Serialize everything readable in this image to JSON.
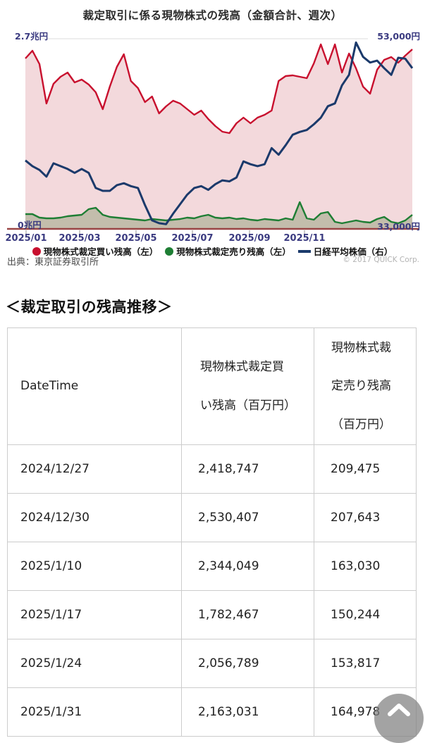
{
  "chart": {
    "title": "裁定取引に係る現物株式の残高（金額合計、週次）",
    "source": "出典：東京証券取引所",
    "copyright": "© 2017 QUICK Corp.",
    "axis_label_color": "#3a3a80",
    "baseline_color": "#9a4444",
    "left_axis": {
      "top_label": "2.7兆円",
      "bottom_label": "0兆円",
      "min": 0,
      "max": 2.7
    },
    "right_axis": {
      "top_label": "53,000円",
      "bottom_label": "33,000円",
      "min": 33000,
      "max": 53000
    }
  },
  "chart_data": {
    "type": "line",
    "x_tick_labels": [
      "2025/01",
      "2025/03",
      "2025/05",
      "2025/07",
      "2025/09",
      "2025/11"
    ],
    "grid": false,
    "legend_position": "bottom",
    "left_axis_range": [
      0,
      2.7
    ],
    "right_axis_range": [
      33000,
      53000
    ],
    "series": [
      {
        "name": "現物株式裁定買い残高（左）",
        "axis": "left",
        "marker": "circle",
        "color": "#c8102e",
        "fill": "#f3d9dc",
        "values": [
          2.42,
          2.53,
          2.34,
          1.78,
          2.06,
          2.16,
          2.22,
          2.08,
          2.12,
          2.05,
          1.94,
          1.7,
          2.02,
          2.3,
          2.48,
          2.1,
          2.0,
          1.8,
          1.88,
          1.64,
          1.74,
          1.82,
          1.78,
          1.7,
          1.62,
          1.68,
          1.56,
          1.46,
          1.38,
          1.36,
          1.5,
          1.58,
          1.5,
          1.58,
          1.62,
          1.68,
          2.1,
          2.17,
          2.18,
          2.16,
          2.14,
          2.35,
          2.62,
          2.34,
          2.62,
          2.22,
          2.49,
          2.28,
          2.02,
          1.92,
          2.26,
          2.4,
          2.44,
          2.36,
          2.46,
          2.55
        ]
      },
      {
        "name": "現物株式裁定売り残高（左）",
        "axis": "left",
        "marker": "circle",
        "color": "#1e7e34",
        "fill": "#c3bdac",
        "values": [
          0.21,
          0.21,
          0.16,
          0.15,
          0.15,
          0.16,
          0.18,
          0.19,
          0.2,
          0.28,
          0.3,
          0.2,
          0.17,
          0.16,
          0.15,
          0.14,
          0.13,
          0.12,
          0.14,
          0.13,
          0.12,
          0.13,
          0.14,
          0.16,
          0.15,
          0.18,
          0.2,
          0.16,
          0.15,
          0.16,
          0.14,
          0.15,
          0.13,
          0.12,
          0.14,
          0.13,
          0.12,
          0.15,
          0.13,
          0.38,
          0.15,
          0.13,
          0.22,
          0.24,
          0.1,
          0.08,
          0.1,
          0.12,
          0.1,
          0.09,
          0.14,
          0.17,
          0.1,
          0.08,
          0.12,
          0.2
        ]
      },
      {
        "name": "日経平均株価（右）",
        "axis": "right",
        "marker": "line",
        "color": "#1b3a6b",
        "values": [
          40200,
          39600,
          39200,
          38500,
          39900,
          39600,
          39300,
          38900,
          39300,
          38900,
          37300,
          37000,
          37000,
          37600,
          37800,
          37500,
          37300,
          35500,
          33900,
          33600,
          33500,
          34600,
          35600,
          36600,
          37300,
          37500,
          37100,
          37700,
          38100,
          38000,
          38400,
          40100,
          39800,
          39600,
          39800,
          41500,
          40800,
          41800,
          42900,
          43200,
          43400,
          44000,
          44700,
          45900,
          46200,
          48100,
          49200,
          52600,
          51100,
          50500,
          50700,
          49900,
          49200,
          51000,
          50900,
          49900
        ]
      }
    ]
  },
  "section": {
    "heading": "＜裁定取引の残高推移＞"
  },
  "table": {
    "headers": [
      "DateTime",
      "現物株式裁定買い残高（百万円）",
      "現物株式裁定売り残高（百万円）"
    ],
    "rows": [
      [
        "2024/12/27",
        "2,418,747",
        "209,475"
      ],
      [
        "2024/12/30",
        "2,530,407",
        "207,643"
      ],
      [
        "2025/1/10",
        "2,344,049",
        "163,030"
      ],
      [
        "2025/1/17",
        "1,782,467",
        "150,244"
      ],
      [
        "2025/1/24",
        "2,056,789",
        "153,817"
      ],
      [
        "2025/1/31",
        "2,163,031",
        "164,978"
      ]
    ]
  }
}
